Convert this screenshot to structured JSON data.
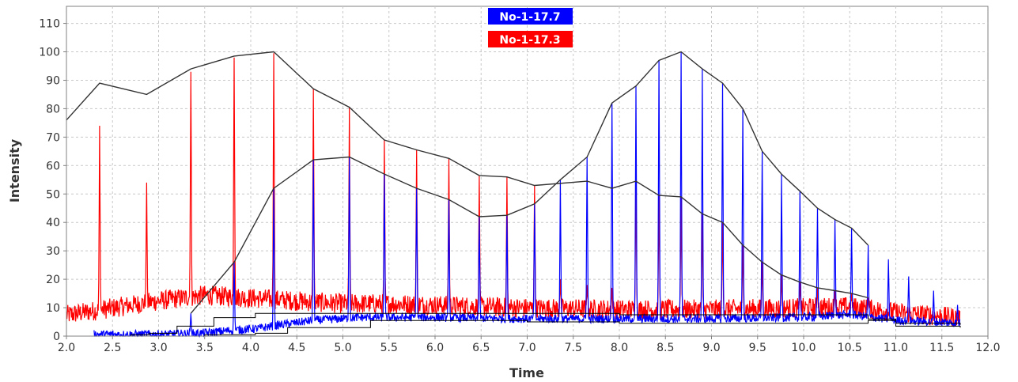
{
  "chart_data": {
    "type": "line",
    "xlabel": "Time",
    "ylabel": "Intensity",
    "xlim": [
      2.0,
      12.0
    ],
    "ylim": [
      0,
      116
    ],
    "xticks": [
      "2.0",
      "2.5",
      "3.0",
      "3.5",
      "4.0",
      "4.5",
      "5.0",
      "5.5",
      "6.0",
      "6.5",
      "7.0",
      "7.5",
      "8.0",
      "8.5",
      "9.0",
      "9.5",
      "10.0",
      "10.5",
      "11.0",
      "11.5",
      "12.0"
    ],
    "yticks": [
      "0",
      "10",
      "20",
      "30",
      "40",
      "50",
      "60",
      "70",
      "80",
      "90",
      "100",
      "110"
    ],
    "grid": true,
    "legend_placement": "top-center",
    "colors": {
      "red": "#ff0000",
      "blue": "#0000ff",
      "envelope": "#333333",
      "grid": "#c8c8c8"
    },
    "series": [
      {
        "name": "No-1-17.7",
        "color": "#0000ff",
        "peaks": [
          {
            "x": 3.35,
            "y": 8
          },
          {
            "x": 3.82,
            "y": 26
          },
          {
            "x": 4.25,
            "y": 52
          },
          {
            "x": 4.68,
            "y": 62
          },
          {
            "x": 5.07,
            "y": 63
          },
          {
            "x": 5.45,
            "y": 57
          },
          {
            "x": 5.8,
            "y": 52
          },
          {
            "x": 6.15,
            "y": 48
          },
          {
            "x": 6.48,
            "y": 42
          },
          {
            "x": 6.78,
            "y": 42.5
          },
          {
            "x": 7.08,
            "y": 46.5
          },
          {
            "x": 7.36,
            "y": 55
          },
          {
            "x": 7.65,
            "y": 63
          },
          {
            "x": 7.92,
            "y": 82
          },
          {
            "x": 8.18,
            "y": 88
          },
          {
            "x": 8.43,
            "y": 97
          },
          {
            "x": 8.67,
            "y": 100
          },
          {
            "x": 8.9,
            "y": 94
          },
          {
            "x": 9.12,
            "y": 89
          },
          {
            "x": 9.34,
            "y": 80
          },
          {
            "x": 9.55,
            "y": 65
          },
          {
            "x": 9.76,
            "y": 57
          },
          {
            "x": 9.96,
            "y": 51
          },
          {
            "x": 10.15,
            "y": 45
          },
          {
            "x": 10.34,
            "y": 41
          },
          {
            "x": 10.52,
            "y": 38
          },
          {
            "x": 10.7,
            "y": 32
          },
          {
            "x": 10.92,
            "y": 27
          },
          {
            "x": 11.14,
            "y": 21
          },
          {
            "x": 11.41,
            "y": 16
          },
          {
            "x": 11.67,
            "y": 11
          }
        ],
        "baseline": [
          {
            "x": 2.0,
            "y": 0
          },
          {
            "x": 3.0,
            "y": 0
          },
          {
            "x": 3.5,
            "y": 0.5
          },
          {
            "x": 3.8,
            "y": 1.5
          },
          {
            "x": 4.05,
            "y": 2
          },
          {
            "x": 4.35,
            "y": 3.5
          },
          {
            "x": 4.7,
            "y": 5
          },
          {
            "x": 5.2,
            "y": 6
          },
          {
            "x": 6.0,
            "y": 6
          },
          {
            "x": 7.0,
            "y": 5.5
          },
          {
            "x": 8.0,
            "y": 5.5
          },
          {
            "x": 9.0,
            "y": 5.5
          },
          {
            "x": 10.0,
            "y": 6
          },
          {
            "x": 10.5,
            "y": 7
          },
          {
            "x": 11.0,
            "y": 5
          },
          {
            "x": 11.7,
            "y": 4
          }
        ],
        "envelope": [
          {
            "x": 3.35,
            "y": 8
          },
          {
            "x": 3.82,
            "y": 26
          },
          {
            "x": 4.25,
            "y": 52
          },
          {
            "x": 4.68,
            "y": 62
          },
          {
            "x": 5.07,
            "y": 63
          },
          {
            "x": 5.45,
            "y": 57
          },
          {
            "x": 5.8,
            "y": 52
          },
          {
            "x": 6.15,
            "y": 48
          },
          {
            "x": 6.48,
            "y": 42
          },
          {
            "x": 6.78,
            "y": 42.5
          },
          {
            "x": 7.08,
            "y": 46.5
          },
          {
            "x": 7.36,
            "y": 55
          },
          {
            "x": 7.65,
            "y": 63
          },
          {
            "x": 7.92,
            "y": 82
          },
          {
            "x": 8.18,
            "y": 88
          },
          {
            "x": 8.43,
            "y": 97
          },
          {
            "x": 8.67,
            "y": 100
          },
          {
            "x": 8.9,
            "y": 94
          },
          {
            "x": 9.12,
            "y": 89
          },
          {
            "x": 9.34,
            "y": 80
          },
          {
            "x": 9.55,
            "y": 65
          },
          {
            "x": 9.76,
            "y": 57
          },
          {
            "x": 9.96,
            "y": 51
          },
          {
            "x": 10.15,
            "y": 45
          },
          {
            "x": 10.34,
            "y": 41
          },
          {
            "x": 10.52,
            "y": 38
          },
          {
            "x": 10.7,
            "y": 32
          }
        ]
      },
      {
        "name": "No-1-17.3",
        "color": "#ff0000",
        "peaks": [
          {
            "x": 2.36,
            "y": 74
          },
          {
            "x": 2.87,
            "y": 54
          },
          {
            "x": 3.35,
            "y": 93
          },
          {
            "x": 3.82,
            "y": 98
          },
          {
            "x": 4.25,
            "y": 99.5
          },
          {
            "x": 4.68,
            "y": 87
          },
          {
            "x": 5.07,
            "y": 80.5
          },
          {
            "x": 5.45,
            "y": 69
          },
          {
            "x": 5.8,
            "y": 65.5
          },
          {
            "x": 6.15,
            "y": 62.5
          },
          {
            "x": 6.48,
            "y": 56.5
          },
          {
            "x": 6.78,
            "y": 56
          },
          {
            "x": 7.08,
            "y": 53
          },
          {
            "x": 7.36,
            "y": 20
          },
          {
            "x": 7.65,
            "y": 18
          },
          {
            "x": 7.92,
            "y": 17
          },
          {
            "x": 8.18,
            "y": 54.5
          },
          {
            "x": 8.43,
            "y": 49.5
          },
          {
            "x": 8.67,
            "y": 49
          },
          {
            "x": 8.9,
            "y": 43
          },
          {
            "x": 9.12,
            "y": 40
          },
          {
            "x": 9.34,
            "y": 32
          },
          {
            "x": 9.55,
            "y": 26
          },
          {
            "x": 9.76,
            "y": 21.5
          },
          {
            "x": 9.96,
            "y": 19
          },
          {
            "x": 10.15,
            "y": 17
          },
          {
            "x": 10.34,
            "y": 16
          },
          {
            "x": 10.52,
            "y": 15
          },
          {
            "x": 10.7,
            "y": 13.5
          }
        ],
        "baseline": [
          {
            "x": 2.0,
            "y": 6
          },
          {
            "x": 3.0,
            "y": 11
          },
          {
            "x": 3.5,
            "y": 13
          },
          {
            "x": 4.0,
            "y": 12
          },
          {
            "x": 4.5,
            "y": 11
          },
          {
            "x": 5.0,
            "y": 10
          },
          {
            "x": 5.5,
            "y": 10
          },
          {
            "x": 6.0,
            "y": 9.5
          },
          {
            "x": 7.0,
            "y": 8.5
          },
          {
            "x": 8.0,
            "y": 8
          },
          {
            "x": 9.0,
            "y": 8
          },
          {
            "x": 10.0,
            "y": 8.5
          },
          {
            "x": 10.5,
            "y": 9
          },
          {
            "x": 11.0,
            "y": 7
          },
          {
            "x": 11.7,
            "y": 5
          }
        ],
        "envelope": [
          {
            "x": 2.0,
            "y": 76
          },
          {
            "x": 2.36,
            "y": 89
          },
          {
            "x": 2.87,
            "y": 85
          },
          {
            "x": 3.35,
            "y": 94
          },
          {
            "x": 3.82,
            "y": 98.5
          },
          {
            "x": 4.25,
            "y": 100
          },
          {
            "x": 4.68,
            "y": 87
          },
          {
            "x": 5.07,
            "y": 80.5
          },
          {
            "x": 5.45,
            "y": 69
          },
          {
            "x": 5.8,
            "y": 65.5
          },
          {
            "x": 6.15,
            "y": 62.5
          },
          {
            "x": 6.48,
            "y": 56.5
          },
          {
            "x": 6.78,
            "y": 56
          },
          {
            "x": 7.08,
            "y": 53
          },
          {
            "x": 7.65,
            "y": 54.5
          },
          {
            "x": 7.92,
            "y": 52
          },
          {
            "x": 8.18,
            "y": 54.5
          },
          {
            "x": 8.43,
            "y": 49.5
          },
          {
            "x": 8.67,
            "y": 49
          },
          {
            "x": 8.9,
            "y": 43
          },
          {
            "x": 9.12,
            "y": 40
          },
          {
            "x": 9.34,
            "y": 32
          },
          {
            "x": 9.55,
            "y": 26
          },
          {
            "x": 9.76,
            "y": 21.5
          },
          {
            "x": 9.96,
            "y": 19
          },
          {
            "x": 10.15,
            "y": 17
          },
          {
            "x": 10.34,
            "y": 16
          },
          {
            "x": 10.52,
            "y": 15
          },
          {
            "x": 10.7,
            "y": 13.5
          }
        ]
      }
    ],
    "step_lines": [
      [
        {
          "x": 2.3,
          "y": 0
        },
        {
          "x": 2.7,
          "y": 0.5
        },
        {
          "x": 2.9,
          "y": 1
        },
        {
          "x": 3.2,
          "y": 3.5
        },
        {
          "x": 3.6,
          "y": 6.5
        },
        {
          "x": 4.05,
          "y": 8
        },
        {
          "x": 5.0,
          "y": 8
        },
        {
          "x": 6.5,
          "y": 8
        },
        {
          "x": 8.0,
          "y": 7.5
        },
        {
          "x": 9.8,
          "y": 7.5
        },
        {
          "x": 10.7,
          "y": 6
        },
        {
          "x": 11.0,
          "y": 4.5
        },
        {
          "x": 11.7,
          "y": 4
        }
      ],
      [
        {
          "x": 2.3,
          "y": 0
        },
        {
          "x": 3.0,
          "y": 0
        },
        {
          "x": 3.5,
          "y": 0.5
        },
        {
          "x": 4.05,
          "y": 1
        },
        {
          "x": 4.4,
          "y": 3
        },
        {
          "x": 5.3,
          "y": 5.5
        },
        {
          "x": 6.6,
          "y": 5.5
        },
        {
          "x": 7.0,
          "y": 5
        },
        {
          "x": 8.0,
          "y": 4.5
        },
        {
          "x": 9.8,
          "y": 4.5
        },
        {
          "x": 10.7,
          "y": 5.5
        },
        {
          "x": 11.0,
          "y": 3.5
        },
        {
          "x": 11.7,
          "y": 3
        }
      ]
    ]
  }
}
